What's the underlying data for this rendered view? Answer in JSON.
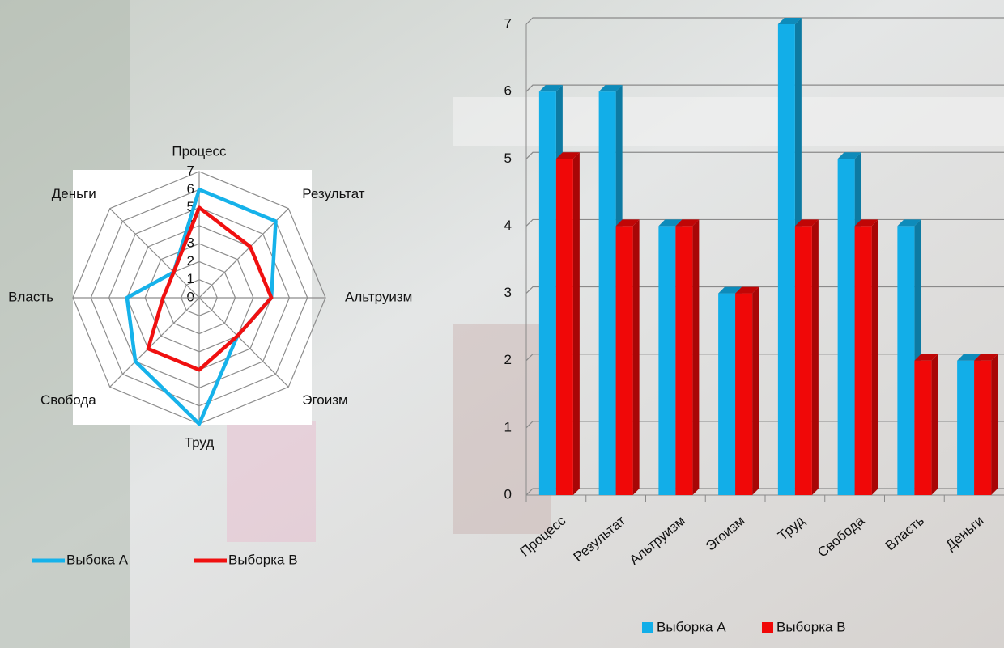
{
  "chart_data": [
    {
      "type": "radar",
      "categories": [
        "Процесс",
        "Результат",
        "Альтруизм",
        "Эгоизм",
        "Труд",
        "Свобода",
        "Власть",
        "Деньги"
      ],
      "series": [
        {
          "name": "Выбока А",
          "color": "#16b2ea",
          "values": [
            6,
            6,
            4,
            3,
            7,
            5,
            4,
            2
          ]
        },
        {
          "name": "Выборка B",
          "color": "#f01010",
          "values": [
            5,
            4,
            4,
            3,
            4,
            4,
            2,
            2
          ]
        }
      ],
      "rlim": [
        0,
        7
      ],
      "rticks": [
        0,
        1,
        2,
        3,
        4,
        5,
        6,
        7
      ],
      "grid": true,
      "legend": "bottom"
    },
    {
      "type": "bar3d",
      "categories": [
        "Процесс",
        "Результат",
        "Альтруизм",
        "Эгоизм",
        "Труд",
        "Свобода",
        "Власть",
        "Деньги"
      ],
      "series": [
        {
          "name": "Выборка А",
          "color": "#12aee8",
          "values": [
            6,
            6,
            4,
            3,
            7,
            5,
            4,
            2
          ]
        },
        {
          "name": "Выборка В",
          "color": "#f00808",
          "values": [
            5,
            4,
            4,
            3,
            4,
            4,
            2,
            2
          ]
        }
      ],
      "ylim": [
        0,
        7
      ],
      "yticks": [
        0,
        1,
        2,
        3,
        4,
        5,
        6,
        7
      ],
      "grid": true,
      "legend": "bottom"
    }
  ]
}
